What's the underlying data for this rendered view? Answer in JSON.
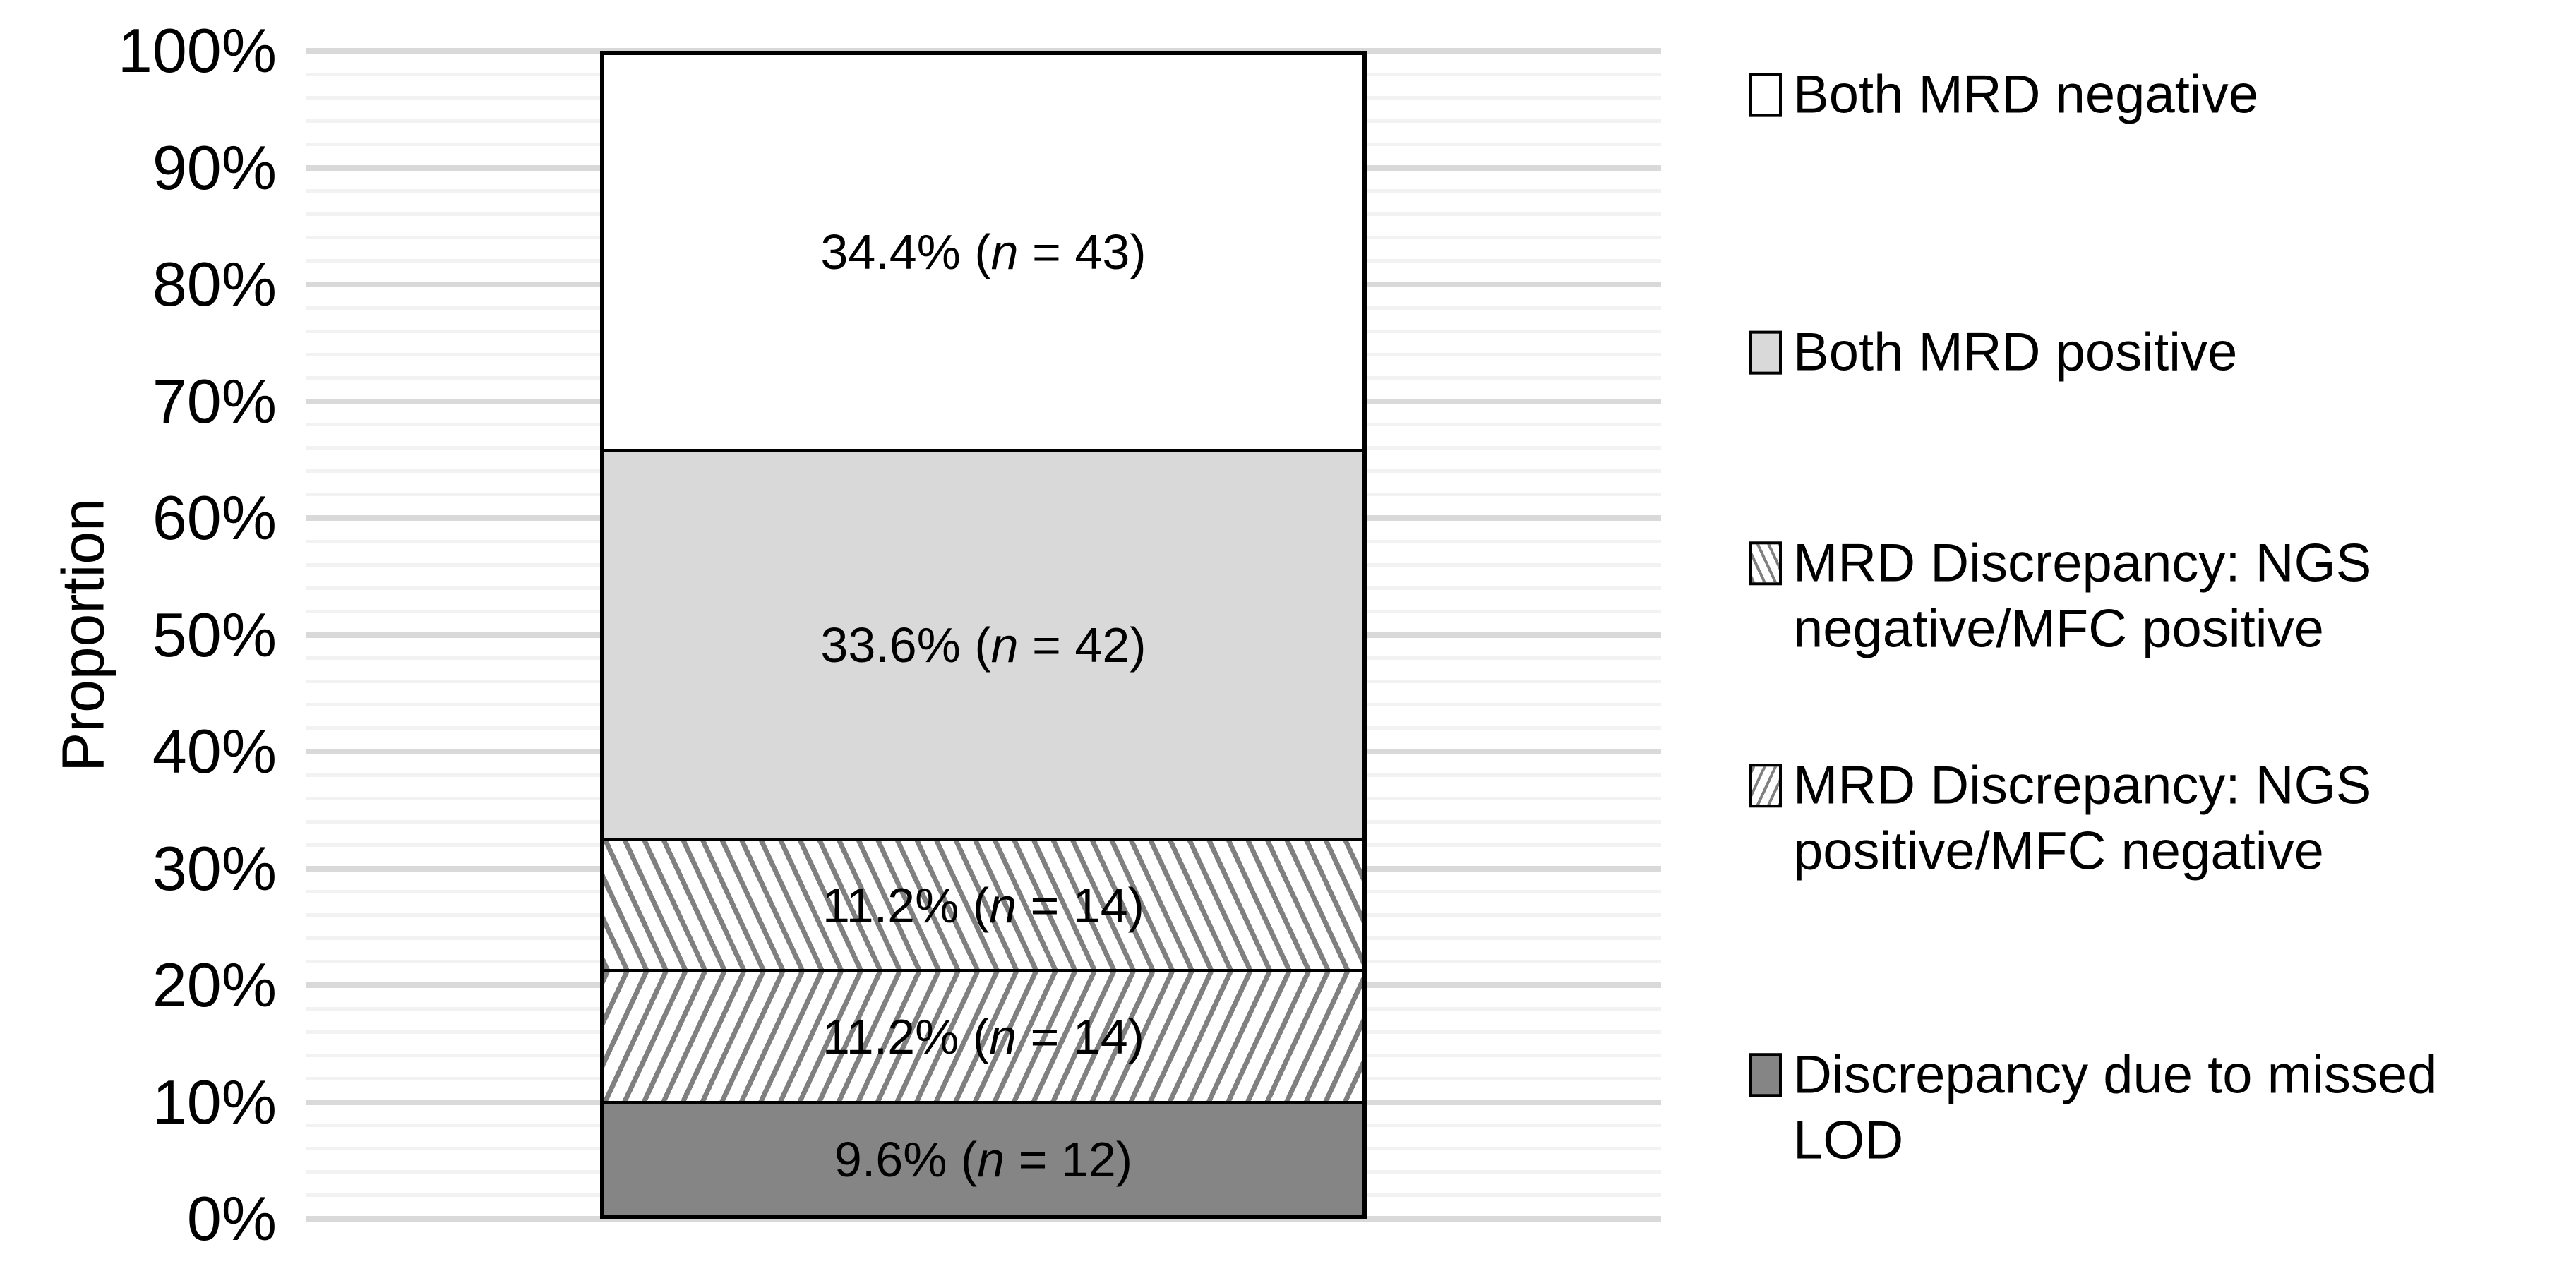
{
  "chart_data": {
    "type": "bar",
    "stacked": true,
    "orientation": "vertical",
    "title": "",
    "xlabel": "",
    "ylabel": "Proportion",
    "ylim": [
      0,
      100
    ],
    "y_major_step": 10,
    "y_minor_step": 2,
    "grid": "horizontal, major and minor",
    "legend_position": "right",
    "n_symbol": "n",
    "y_tick_labels": [
      "100%",
      "90%",
      "80%",
      "70%",
      "60%",
      "50%",
      "40%",
      "30%",
      "20%",
      "10%",
      "0%"
    ],
    "categories": [
      ""
    ],
    "series": [
      {
        "name": "Both MRD negative",
        "value_pct": 34.4,
        "value_label": "34.4%",
        "n": "43",
        "pattern": "solid",
        "fill": "#ffffff"
      },
      {
        "name": "Both MRD positive",
        "value_pct": 33.6,
        "value_label": "33.6%",
        "n": "42",
        "pattern": "solid",
        "fill": "#d9d9d9"
      },
      {
        "name": "MRD Discrepancy: NGS negative/MFC positive",
        "value_pct": 11.2,
        "value_label": "11.2%",
        "n": "14",
        "pattern": "hatch-down",
        "fill": "#ffffff"
      },
      {
        "name": "MRD Discrepancy: NGS positive/MFC negative",
        "value_pct": 11.2,
        "value_label": "11.2%",
        "n": "14",
        "pattern": "hatch-up",
        "fill": "#ffffff"
      },
      {
        "name": "Discrepancy due to missed LOD",
        "value_pct": 9.6,
        "value_label": "9.6%",
        "n": "12",
        "pattern": "solid",
        "fill": "#858585"
      }
    ],
    "colors": {
      "grid_major": "#d9d9d9",
      "grid_minor": "#f2f2f2",
      "segment_border": "#000000",
      "hatch_line": "#808080",
      "text": "#000000"
    }
  }
}
